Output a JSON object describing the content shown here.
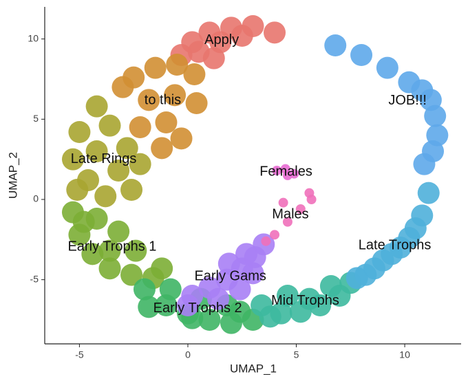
{
  "chart_data": {
    "type": "scatter",
    "x_label": "UMAP_1",
    "y_label": "UMAP_2",
    "xlim": [
      -6.6,
      12.6
    ],
    "ylim": [
      -9,
      12
    ],
    "xticks": [
      -5,
      0,
      5,
      10
    ],
    "yticks": [
      -5,
      0,
      5,
      10
    ],
    "series": [
      {
        "name": "Apply",
        "color": "#e8766e",
        "x": [
          0.2,
          1,
          2,
          3,
          4,
          0.5,
          1.5,
          2.5,
          -0.3,
          1.2
        ],
        "y": [
          9.8,
          10.4,
          10.7,
          10.8,
          10.4,
          9.2,
          9.8,
          10.2,
          9,
          8.8
        ]
      },
      {
        "name": "to this",
        "color": "#d28f33",
        "x": [
          -2.5,
          -1.5,
          -0.5,
          0.3,
          -3,
          -1.8,
          -0.6,
          0.4,
          -1,
          -2.2,
          -0.3,
          -1.2
        ],
        "y": [
          7.6,
          8.2,
          8.4,
          7.8,
          7,
          6.2,
          6.5,
          6,
          4.8,
          4.5,
          3.8,
          3.2
        ]
      },
      {
        "name": "Late Rings",
        "color": "#a9a531",
        "x": [
          -4.2,
          -5,
          -5.3,
          -4.6,
          -3.6,
          -2.8,
          -4.2,
          -3.2,
          -2.2,
          -5.1,
          -3.8,
          -2.6
        ],
        "y": [
          5.8,
          4.2,
          2.5,
          1.2,
          4.6,
          3.2,
          3,
          1.8,
          2.2,
          0.6,
          0.2,
          0.6
        ]
      },
      {
        "name": "Early Trophs 1",
        "color": "#7cae35",
        "x": [
          -5.3,
          -5,
          -4.4,
          -3.6,
          -2.6,
          -1.6,
          -4.2,
          -3.2,
          -2.4,
          -4.8,
          -3.6,
          -1.2
        ],
        "y": [
          -0.8,
          -2.2,
          -3.4,
          -4.3,
          -4.7,
          -4.9,
          -1.2,
          -2,
          -3.2,
          -1.4,
          -3.2,
          -4.3
        ]
      },
      {
        "name": "Early Trophs 2",
        "color": "#3fb565",
        "x": [
          -2,
          -1,
          0,
          1,
          2,
          3,
          -0.8,
          0.6,
          1.8,
          -1.8,
          0.2,
          2.4
        ],
        "y": [
          -5.6,
          -6.6,
          -7.1,
          -7.5,
          -7.7,
          -7.5,
          -5.6,
          -6.2,
          -6.6,
          -6.7,
          -7.4,
          -7
        ]
      },
      {
        "name": "Early Gams",
        "color": "#a97ff5",
        "x": [
          0.2,
          1,
          1.8,
          2.5,
          3.1,
          3.5,
          2.4,
          1.4,
          3,
          0,
          2.7,
          1.9
        ],
        "y": [
          -6,
          -5.5,
          -5,
          -4.3,
          -3.6,
          -2.8,
          -5.6,
          -6.2,
          -4.6,
          -6.6,
          -3.4,
          -4
        ]
      },
      {
        "name": "Mid Trophs",
        "color": "#3db99e",
        "x": [
          3.4,
          4.3,
          5.2,
          6.1,
          7,
          4.6,
          3.8,
          6.6,
          5.6,
          7.5
        ],
        "y": [
          -6.6,
          -7.1,
          -7,
          -6.6,
          -6,
          -6,
          -7.3,
          -5.4,
          -6.2,
          -5.2
        ]
      },
      {
        "name": "Late Trophs",
        "color": "#4fb0da",
        "x": [
          7.8,
          8.6,
          9.4,
          10.2,
          10.8,
          8.2,
          9.8,
          10.5,
          11.1,
          9
        ],
        "y": [
          -4.9,
          -4.3,
          -3.4,
          -2.4,
          -1,
          -4.7,
          -3,
          -1.8,
          0.4,
          -3.8
        ]
      },
      {
        "name": "JOB!!!",
        "color": "#5ea8ea",
        "x": [
          6.8,
          8,
          9.2,
          10.2,
          10.8,
          11.2,
          11.4,
          11.5,
          11.3,
          10.9
        ],
        "y": [
          9.6,
          9,
          8.2,
          7.3,
          6.8,
          6.2,
          5.2,
          4,
          3,
          2.2
        ]
      },
      {
        "name": "Females",
        "color": "#e86bd3",
        "x": [
          4.1,
          4.5,
          4.9,
          4.6
        ],
        "y": [
          1.8,
          1.9,
          1.6,
          1.5
        ]
      },
      {
        "name": "Males",
        "color": "#f070ba",
        "x": [
          5.6,
          5.7,
          5.2,
          4.6,
          4,
          3.6,
          4.4
        ],
        "y": [
          0.4,
          0,
          -0.6,
          -1.4,
          -2.2,
          -2.6,
          -0.2
        ]
      }
    ]
  }
}
